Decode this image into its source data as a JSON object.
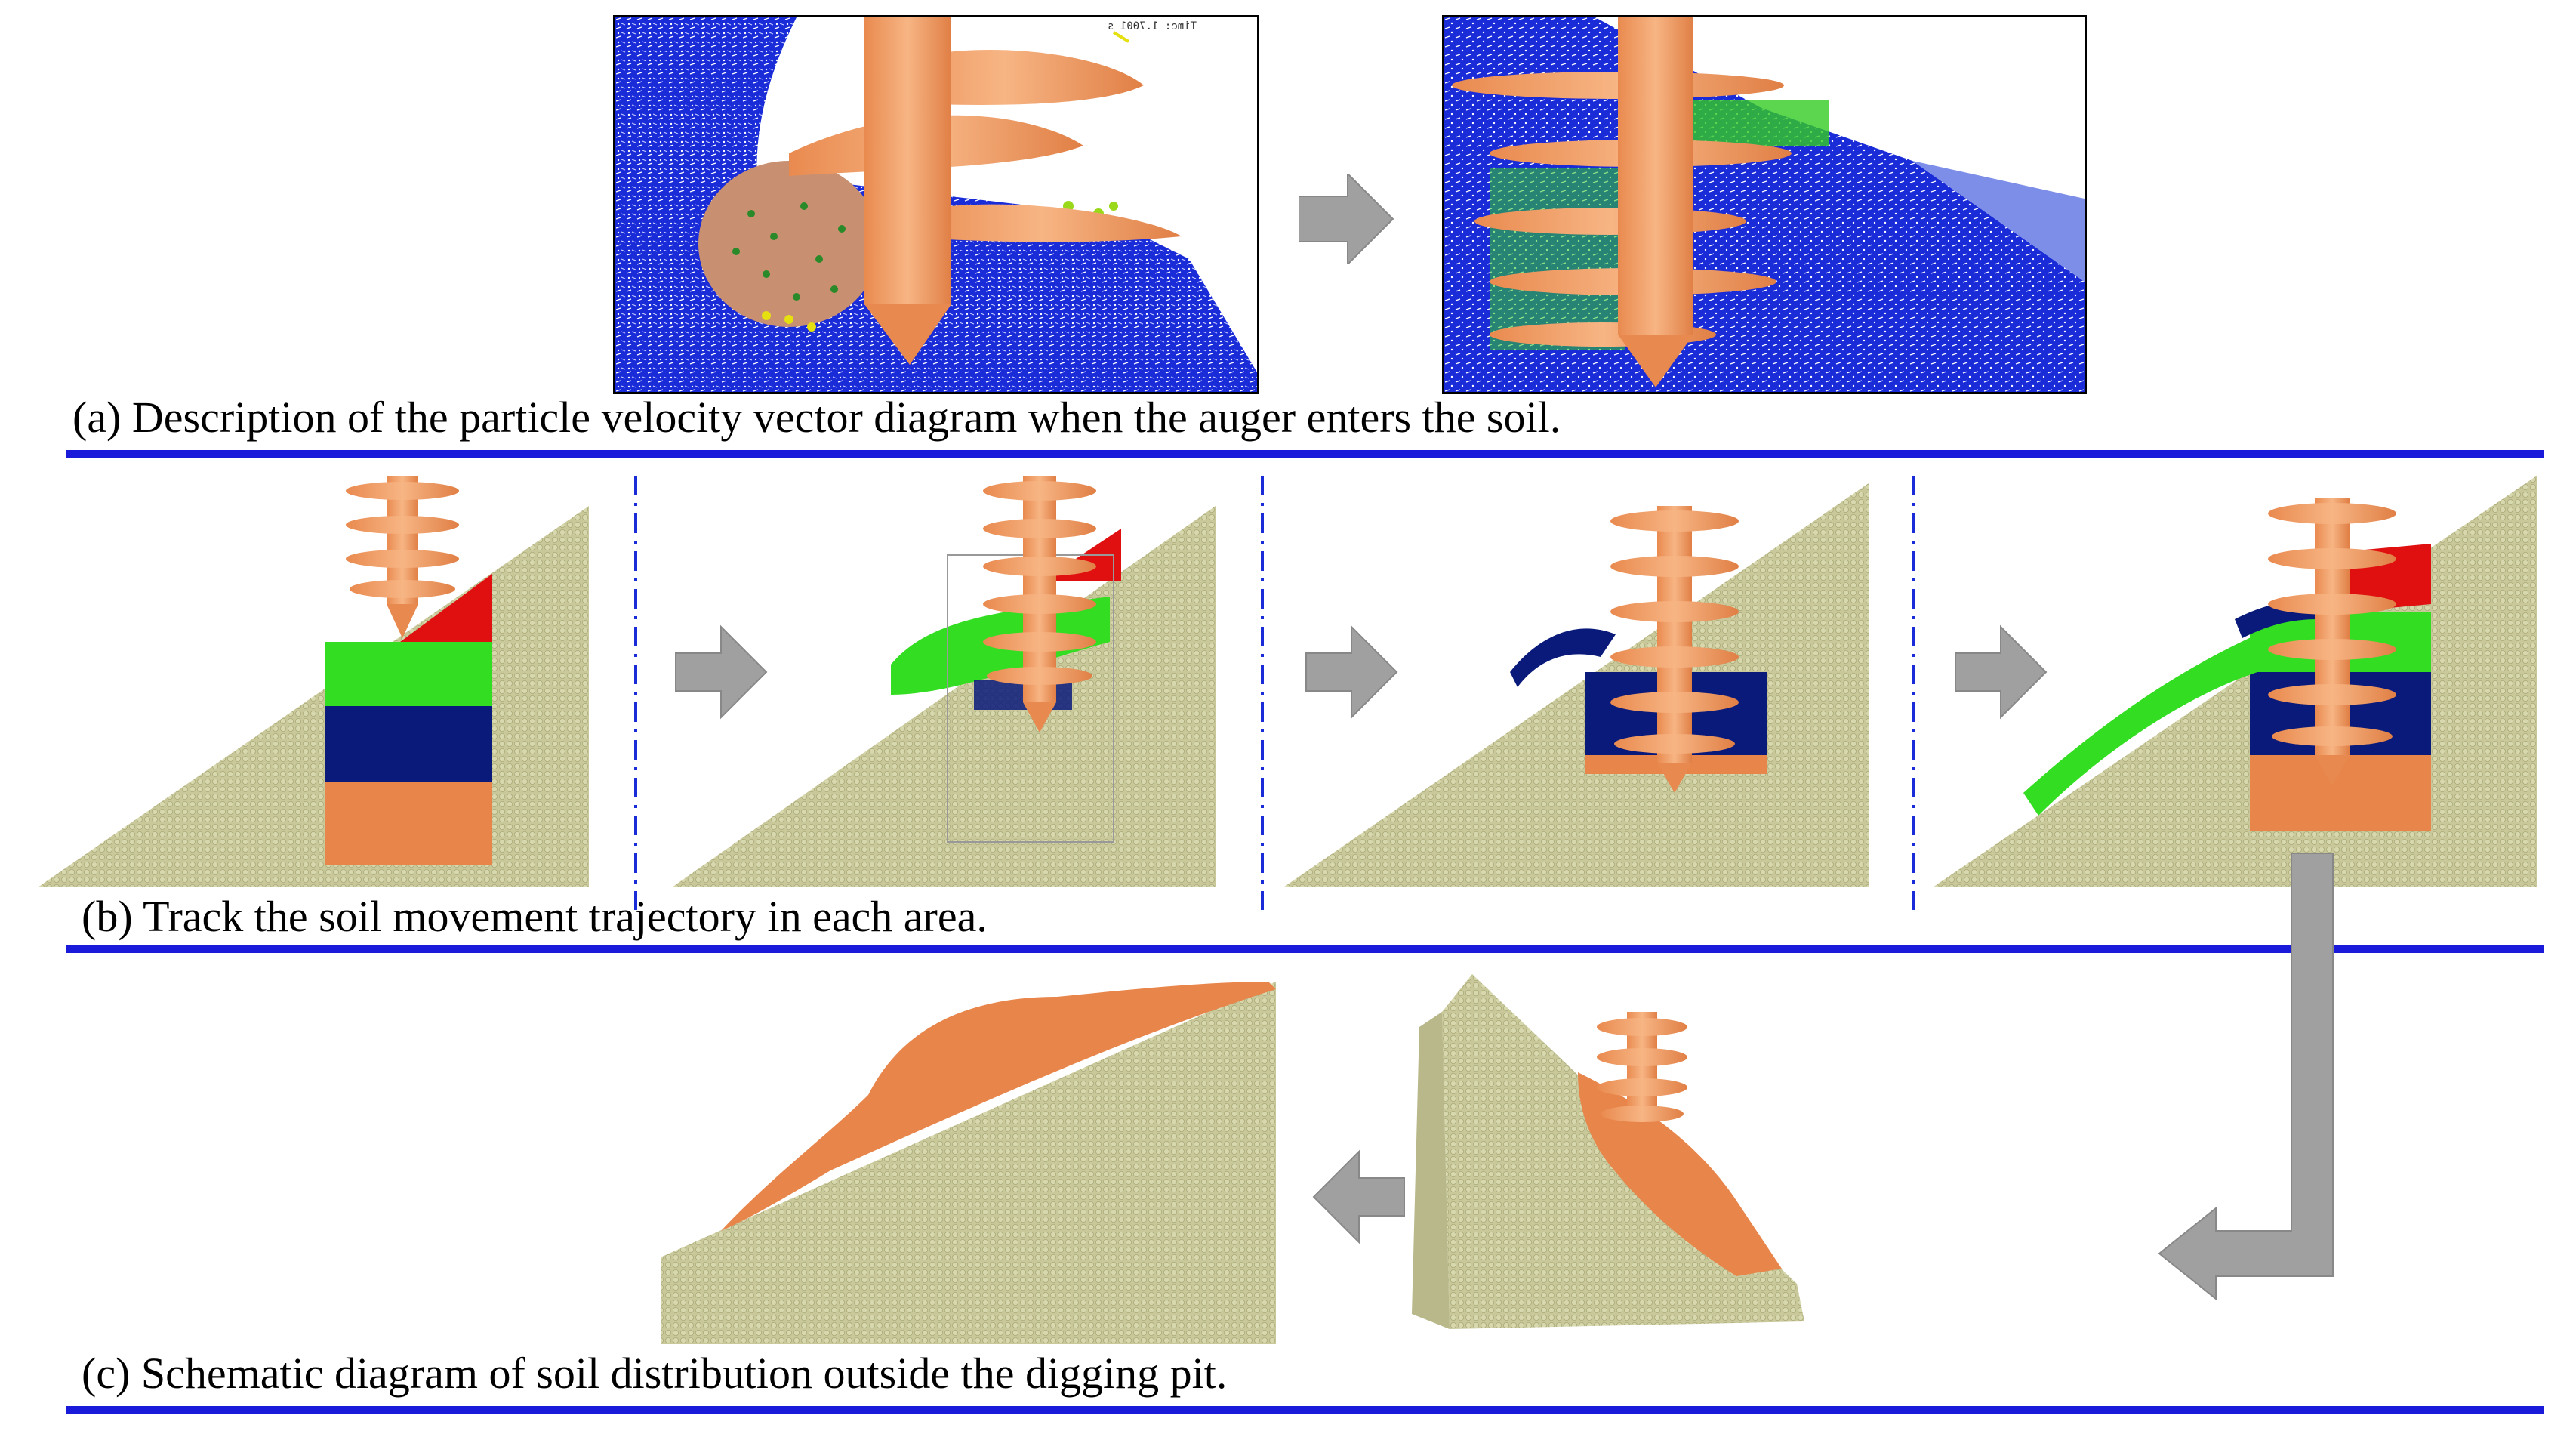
{
  "figure": {
    "captions": {
      "a": "(a) Description of the particle velocity vector diagram when the auger enters the soil.",
      "b": "(b) Track the soil movement trajectory in each area.",
      "c": "(c) Schematic diagram of soil distribution outside the digging pit."
    },
    "simulation_timestamp": "Time: 1.7001 s"
  },
  "colors": {
    "auger": "#f4a26a",
    "auger_dark": "#d9824a",
    "soil": "#c8c89a",
    "soil_dark": "#a9a978",
    "red_layer": "#e01010",
    "green_layer": "#33dd22",
    "blue_layer": "#0a1a7a",
    "orange_layer": "#e8854a",
    "vector_blue": "#1020c8",
    "arrow_gray": "#a0a0a0",
    "rule_blue": "#1a1adb"
  }
}
